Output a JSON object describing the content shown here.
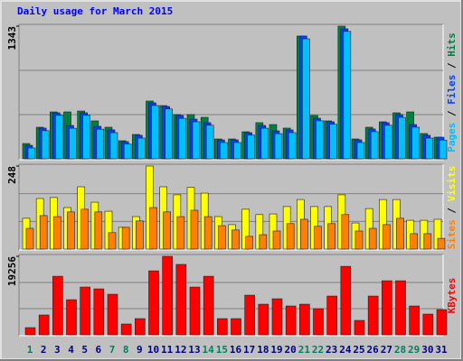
{
  "chart_data": {
    "type": "bar",
    "title": "Daily usage for March 2015",
    "categories": [
      "1",
      "2",
      "3",
      "4",
      "5",
      "6",
      "7",
      "8",
      "9",
      "10",
      "11",
      "12",
      "13",
      "14",
      "15",
      "16",
      "17",
      "18",
      "19",
      "20",
      "21",
      "22",
      "23",
      "24",
      "25",
      "26",
      "27",
      "28",
      "29",
      "30",
      "31"
    ],
    "category_colors": [
      "#00805c",
      "#000080",
      "#000080",
      "#000080",
      "#000080",
      "#000080",
      "#00805c",
      "#00805c",
      "#000080",
      "#000080",
      "#000080",
      "#000080",
      "#000080",
      "#00805c",
      "#00805c",
      "#000080",
      "#000080",
      "#000080",
      "#000080",
      "#000080",
      "#00805c",
      "#00805c",
      "#000080",
      "#000080",
      "#000080",
      "#000080",
      "#000080",
      "#00805c",
      "#00805c",
      "#000080",
      "#000080"
    ],
    "legend_separator": " / ",
    "panels": [
      {
        "ylim": [
          0,
          1343
        ],
        "yticks": [
          1343
        ],
        "series": [
          {
            "name": "Hits",
            "color": "#008040",
            "values": [
              155,
              320,
              475,
              475,
              484,
              384,
              320,
              183,
              247,
              585,
              539,
              448,
              448,
              420,
              201,
              201,
              274,
              366,
              347,
              311,
              1243,
              439,
              384,
              1343,
              201,
              320,
              375,
              466,
              475,
              256,
              219
            ]
          },
          {
            "name": "Files",
            "color": "#0040ff",
            "values": [
              137,
              311,
              466,
              338,
              466,
              329,
              293,
              174,
              238,
              567,
              530,
              439,
              402,
              366,
              192,
              192,
              265,
              338,
              283,
              293,
              1243,
              411,
              375,
              1316,
              192,
              302,
              366,
              448,
              347,
              238,
              219
            ]
          },
          {
            "name": "Pages",
            "color": "#00c0ff",
            "values": [
              110,
              285,
              440,
              310,
              440,
              300,
              265,
              150,
              210,
              540,
              505,
              410,
              375,
              340,
              165,
              165,
              240,
              310,
              255,
              265,
              1215,
              385,
              350,
              1290,
              165,
              275,
              340,
              420,
              320,
              210,
              190
            ]
          }
        ]
      },
      {
        "ylim": [
          0,
          248
        ],
        "yticks": [
          248
        ],
        "series": [
          {
            "name": "Visits",
            "color": "#ffff00",
            "values": [
              92,
              151,
              154,
              124,
              186,
              140,
              113,
              65,
              97,
              248,
              186,
              162,
              184,
              167,
              97,
              73,
              119,
              103,
              105,
              127,
              148,
              127,
              127,
              162,
              78,
              121,
              148,
              148,
              86,
              86,
              89
            ]
          },
          {
            "name": "Sites",
            "color": "#ff8000",
            "values": [
              62,
              100,
              97,
              111,
              119,
              111,
              49,
              65,
              84,
              124,
              111,
              97,
              116,
              97,
              70,
              57,
              38,
              43,
              54,
              76,
              89,
              68,
              76,
              103,
              54,
              62,
              73,
              92,
              46,
              46,
              32
            ]
          }
        ]
      },
      {
        "ylim": [
          0,
          19256
        ],
        "yticks": [
          19256
        ],
        "series": [
          {
            "name": "KBytes",
            "color": "#ff0000",
            "values": [
              1768,
              4862,
              14365,
              8619,
              11713,
              11271,
              9945,
              2652,
              3978,
              15691,
              19256,
              17267,
              11713,
              14365,
              3978,
              3978,
              9724,
              7514,
              8840,
              7072,
              7514,
              6409,
              9503,
              16796,
              3536,
              9503,
              13260,
              13260,
              7072,
              5083,
              6188
            ]
          }
        ]
      }
    ]
  }
}
